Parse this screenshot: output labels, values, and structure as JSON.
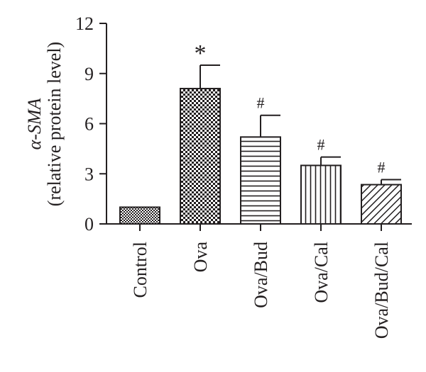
{
  "chart_data": {
    "type": "bar",
    "categories": [
      "Control",
      "Ova",
      "Ova/Bud",
      "Ova/Cal",
      "Ova/Bud/Cal"
    ],
    "values": [
      1.0,
      8.1,
      5.2,
      3.5,
      2.35
    ],
    "errors": [
      0,
      1.4,
      1.3,
      0.5,
      0.3
    ],
    "annotations": [
      "",
      "*",
      "#",
      "#",
      "#"
    ],
    "patterns": [
      "dense-checker",
      "checker",
      "horizontal-lines",
      "vertical-lines",
      "diagonal-lines"
    ],
    "ylabel_line1": "α-SMA",
    "ylabel_line2": "(relative protein level)",
    "ylim": [
      0,
      12
    ],
    "yticks": [
      0,
      3,
      6,
      9,
      12
    ],
    "grid": false,
    "legend": "none",
    "colors": {
      "ink": "#231f20",
      "fill": "#ffffff"
    }
  }
}
